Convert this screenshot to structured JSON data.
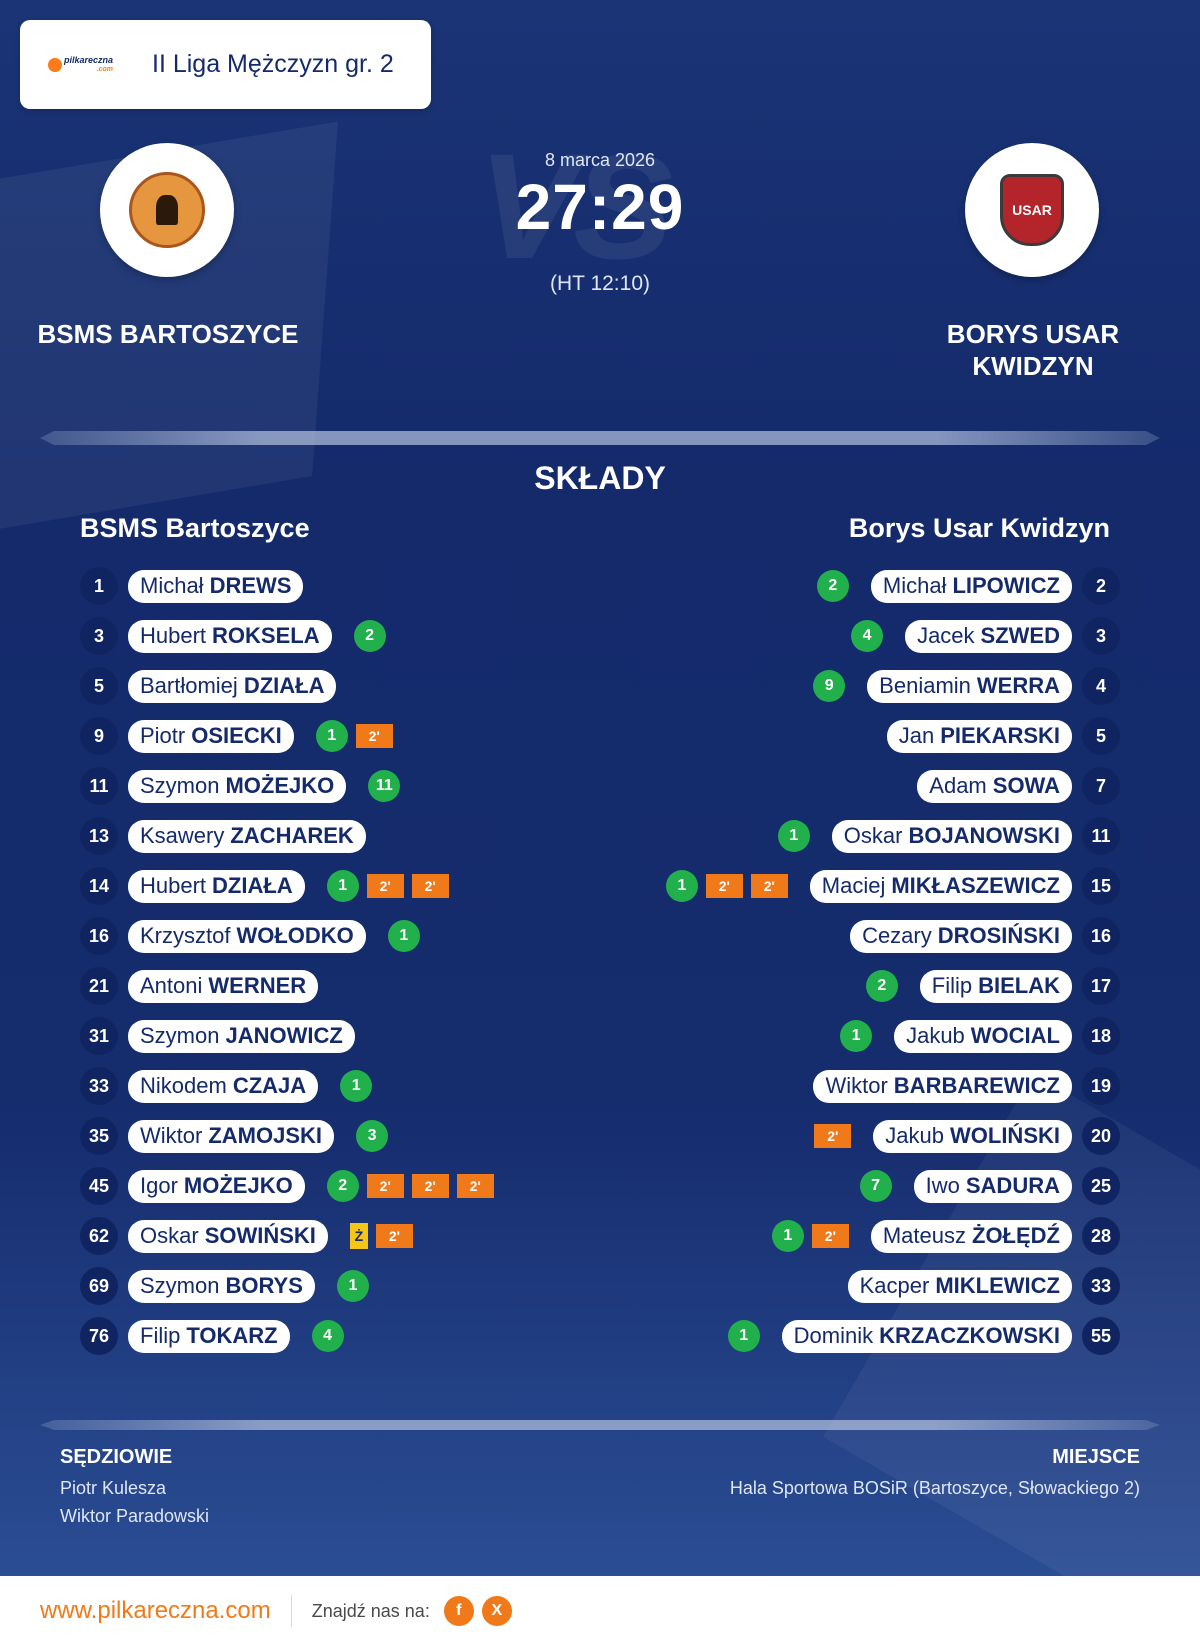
{
  "league": {
    "name": "II Liga Mężczyzn gr. 2",
    "logo_text": "pilkareczna",
    "logo_sub": ".com"
  },
  "match": {
    "date": "8 marca 2026",
    "score": "27:29",
    "halftime": "(HT 12:10)",
    "vs_text": "VS"
  },
  "home": {
    "name": "BSMS BARTOSZYCE",
    "column_title": "BSMS Bartoszyce"
  },
  "away": {
    "name": "BORYS USAR KWIDZYN",
    "column_title": "Borys Usar Kwidzyn",
    "crest_text": "USAR"
  },
  "lineups_title": "SKŁADY",
  "home_players": [
    {
      "num": "1",
      "first": "Michał",
      "last": "DREWS",
      "badges": []
    },
    {
      "num": "3",
      "first": "Hubert",
      "last": "ROKSELA",
      "badges": [
        {
          "type": "goal",
          "text": "2"
        }
      ]
    },
    {
      "num": "5",
      "first": "Bartłomiej",
      "last": "DZIAŁA",
      "badges": []
    },
    {
      "num": "9",
      "first": "Piotr",
      "last": "OSIECKI",
      "badges": [
        {
          "type": "goal",
          "text": "1"
        },
        {
          "type": "pen",
          "text": "2'"
        }
      ]
    },
    {
      "num": "11",
      "first": "Szymon",
      "last": "MOŻEJKO",
      "badges": [
        {
          "type": "goal",
          "text": "11"
        }
      ]
    },
    {
      "num": "13",
      "first": "Ksawery",
      "last": "ZACHAREK",
      "badges": []
    },
    {
      "num": "14",
      "first": "Hubert",
      "last": "DZIAŁA",
      "badges": [
        {
          "type": "goal",
          "text": "1"
        },
        {
          "type": "pen",
          "text": "2'"
        },
        {
          "type": "pen",
          "text": "2'"
        }
      ]
    },
    {
      "num": "16",
      "first": "Krzysztof",
      "last": "WOŁODKO",
      "badges": [
        {
          "type": "goal",
          "text": "1"
        }
      ]
    },
    {
      "num": "21",
      "first": "Antoni",
      "last": "WERNER",
      "badges": []
    },
    {
      "num": "31",
      "first": "Szymon",
      "last": "JANOWICZ",
      "badges": []
    },
    {
      "num": "33",
      "first": "Nikodem",
      "last": "CZAJA",
      "badges": [
        {
          "type": "goal",
          "text": "1"
        }
      ]
    },
    {
      "num": "35",
      "first": "Wiktor",
      "last": "ZAMOJSKI",
      "badges": [
        {
          "type": "goal",
          "text": "3"
        }
      ]
    },
    {
      "num": "45",
      "first": "Igor",
      "last": "MOŻEJKO",
      "badges": [
        {
          "type": "goal",
          "text": "2"
        },
        {
          "type": "pen",
          "text": "2'"
        },
        {
          "type": "pen",
          "text": "2'"
        },
        {
          "type": "pen",
          "text": "2'"
        }
      ]
    },
    {
      "num": "62",
      "first": "Oskar",
      "last": "SOWIŃSKI",
      "badges": [
        {
          "type": "yellow",
          "text": "Ż"
        },
        {
          "type": "pen",
          "text": "2'"
        }
      ]
    },
    {
      "num": "69",
      "first": "Szymon",
      "last": "BORYS",
      "badges": [
        {
          "type": "goal",
          "text": "1"
        }
      ]
    },
    {
      "num": "76",
      "first": "Filip",
      "last": "TOKARZ",
      "badges": [
        {
          "type": "goal",
          "text": "4"
        }
      ]
    }
  ],
  "away_players": [
    {
      "num": "2",
      "first": "Michał",
      "last": "LIPOWICZ",
      "badges": [
        {
          "type": "goal",
          "text": "2"
        }
      ]
    },
    {
      "num": "3",
      "first": "Jacek",
      "last": "SZWED",
      "badges": [
        {
          "type": "goal",
          "text": "4"
        }
      ]
    },
    {
      "num": "4",
      "first": "Beniamin",
      "last": "WERRA",
      "badges": [
        {
          "type": "goal",
          "text": "9"
        }
      ]
    },
    {
      "num": "5",
      "first": "Jan",
      "last": "PIEKARSKI",
      "badges": []
    },
    {
      "num": "7",
      "first": "Adam",
      "last": "SOWA",
      "badges": []
    },
    {
      "num": "11",
      "first": "Oskar",
      "last": "BOJANOWSKI",
      "badges": [
        {
          "type": "goal",
          "text": "1"
        }
      ]
    },
    {
      "num": "15",
      "first": "Maciej",
      "last": "MIKŁASZEWICZ",
      "badges": [
        {
          "type": "goal",
          "text": "1"
        },
        {
          "type": "pen",
          "text": "2'"
        },
        {
          "type": "pen",
          "text": "2'"
        }
      ]
    },
    {
      "num": "16",
      "first": "Cezary",
      "last": "DROSIŃSKI",
      "badges": []
    },
    {
      "num": "17",
      "first": "Filip",
      "last": "BIELAK",
      "badges": [
        {
          "type": "goal",
          "text": "2"
        }
      ]
    },
    {
      "num": "18",
      "first": "Jakub",
      "last": "WOCIAL",
      "badges": [
        {
          "type": "goal",
          "text": "1"
        }
      ]
    },
    {
      "num": "19",
      "first": "Wiktor",
      "last": "BARBAREWICZ",
      "badges": []
    },
    {
      "num": "20",
      "first": "Jakub",
      "last": "WOLIŃSKI",
      "badges": [
        {
          "type": "pen",
          "text": "2'"
        }
      ]
    },
    {
      "num": "25",
      "first": "Iwo",
      "last": "SADURA",
      "badges": [
        {
          "type": "goal",
          "text": "7"
        }
      ]
    },
    {
      "num": "28",
      "first": "Mateusz",
      "last": "ŻOŁĘDŹ",
      "badges": [
        {
          "type": "goal",
          "text": "1"
        },
        {
          "type": "pen",
          "text": "2'"
        }
      ]
    },
    {
      "num": "33",
      "first": "Kacper",
      "last": "MIKLEWICZ",
      "badges": []
    },
    {
      "num": "55",
      "first": "Dominik",
      "last": "KRZACZKOWSKI",
      "badges": [
        {
          "type": "goal",
          "text": "1"
        }
      ]
    }
  ],
  "referees": {
    "label": "SĘDZIOWIE",
    "names": [
      "Piotr Kulesza",
      "Wiktor Paradowski"
    ]
  },
  "venue": {
    "label": "MIEJSCE",
    "name": "Hala Sportowa BOSiR (Bartoszyce, Słowackiego 2)"
  },
  "footer": {
    "url": "www.pilkareczna.com",
    "find_label": "Znajdź nas na:",
    "facebook": "f",
    "x": "X"
  },
  "colors": {
    "background": "#14296a",
    "goal": "#21b04b",
    "penalty": "#f07a1a",
    "yellow": "#f5c518",
    "accent": "#f07a1a"
  }
}
